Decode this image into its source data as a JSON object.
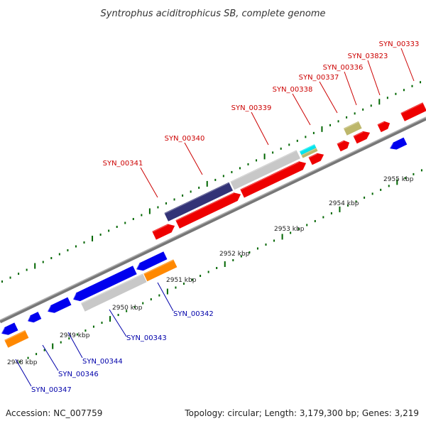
{
  "title": "Syntrophus aciditrophicus SB, complete genome",
  "footer": {
    "accession": "Accession: NC_007759",
    "info": "Topology: circular; Length: 3,179,300 bp; Genes: 3,219"
  },
  "colors": {
    "forward_label": "#cc0000",
    "reverse_label": "#0000aa",
    "backbone": "#888888",
    "tick": "#006600",
    "red": "#ee0000",
    "blue": "#0000ee",
    "gray": "#c8c8c8",
    "orange": "#ff8800",
    "navy": "#333377",
    "cyan": "#00e5ee",
    "khaki": "#bdb76b"
  },
  "scale_labels": [
    {
      "text": "2948 kbp",
      "kbp": 2948
    },
    {
      "text": "2949 kbp",
      "kbp": 2949
    },
    {
      "text": "2950 kbp",
      "kbp": 2950
    },
    {
      "text": "2951 kbp",
      "kbp": 2951
    },
    {
      "text": "2952 kbp",
      "kbp": 2952
    },
    {
      "text": "2953 kbp",
      "kbp": 2953
    },
    {
      "text": "2954 kbp",
      "kbp": 2954
    },
    {
      "text": "2955 kbp",
      "kbp": 2955
    }
  ],
  "forward_labels": [
    "SYN_00341",
    "SYN_00340",
    "SYN_00339",
    "SYN_00338",
    "SYN_00337",
    "SYN_00336",
    "SYN_03823",
    "SYN_00333"
  ],
  "reverse_labels": [
    "SYN_00342",
    "SYN_00343",
    "SYN_00344",
    "SYN_00346",
    "SYN_00347"
  ]
}
